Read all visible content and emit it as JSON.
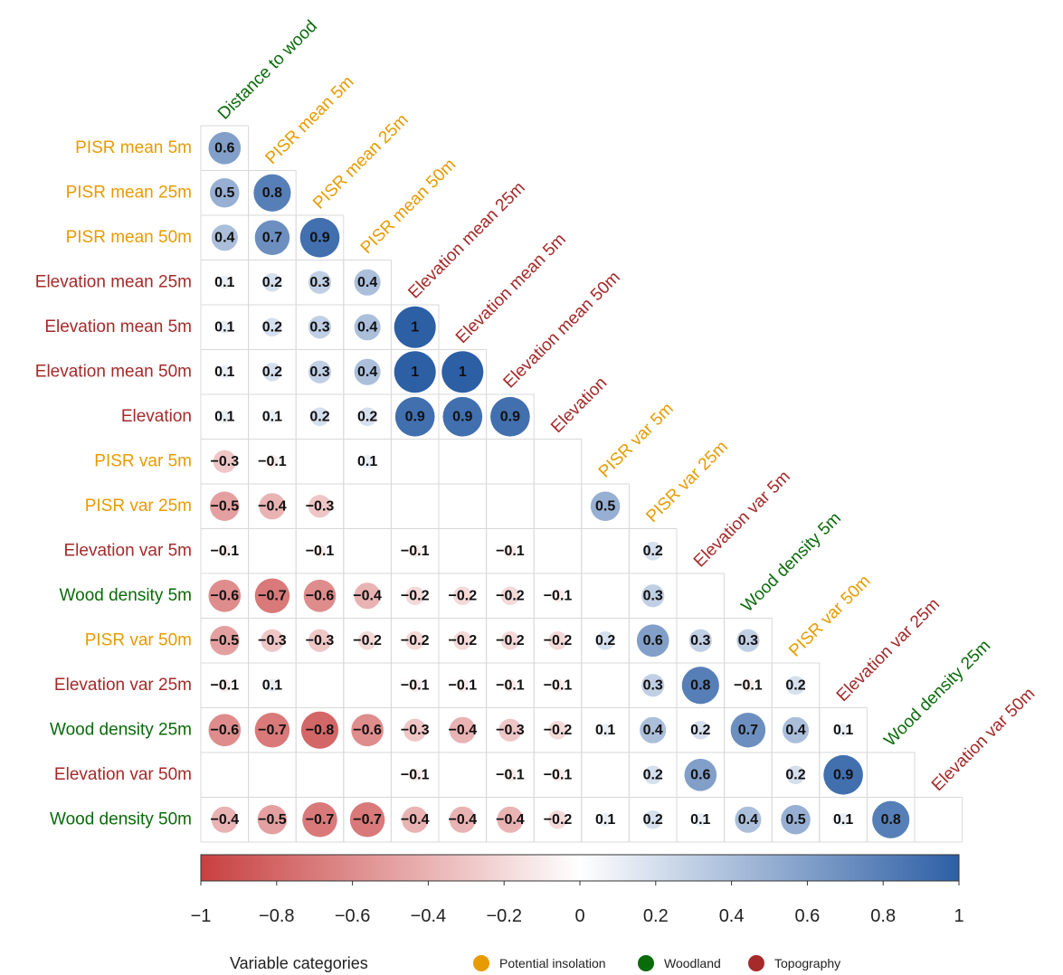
{
  "colors": {
    "Potential insolation": "#e79b00",
    "Woodland": "#0a6b0a",
    "Topography": "#a52a2a",
    "negative": "#cc4444",
    "positive": "#3b6fb0"
  },
  "chart_data": {
    "type": "heatmap",
    "diagonal_labels": [
      {
        "label": "Distance to wood",
        "category": "Woodland"
      },
      {
        "label": "PISR mean 5m",
        "category": "Potential insolation"
      },
      {
        "label": "PISR mean 25m",
        "category": "Potential insolation"
      },
      {
        "label": "PISR mean 50m",
        "category": "Potential insolation"
      },
      {
        "label": "Elevation mean 25m",
        "category": "Topography"
      },
      {
        "label": "Elevation mean 5m",
        "category": "Topography"
      },
      {
        "label": "Elevation mean 50m",
        "category": "Topography"
      },
      {
        "label": "Elevation",
        "category": "Topography"
      },
      {
        "label": "PISR var 5m",
        "category": "Potential insolation"
      },
      {
        "label": "PISR var 25m",
        "category": "Potential insolation"
      },
      {
        "label": "Elevation var 5m",
        "category": "Topography"
      },
      {
        "label": "Wood density 5m",
        "category": "Woodland"
      },
      {
        "label": "PISR var 50m",
        "category": "Potential insolation"
      },
      {
        "label": "Elevation var 25m",
        "category": "Topography"
      },
      {
        "label": "Wood density 25m",
        "category": "Woodland"
      },
      {
        "label": "Elevation var 50m",
        "category": "Topography"
      }
    ],
    "rows": [
      {
        "label": "PISR mean 5m",
        "category": "Potential insolation",
        "values": [
          0.6
        ]
      },
      {
        "label": "PISR mean 25m",
        "category": "Potential insolation",
        "values": [
          0.5,
          0.8
        ]
      },
      {
        "label": "PISR mean 50m",
        "category": "Potential insolation",
        "values": [
          0.4,
          0.7,
          0.9
        ]
      },
      {
        "label": "Elevation mean 25m",
        "category": "Topography",
        "values": [
          0.1,
          0.2,
          0.3,
          0.4
        ]
      },
      {
        "label": "Elevation mean 5m",
        "category": "Topography",
        "values": [
          0.1,
          0.2,
          0.3,
          0.4,
          1
        ]
      },
      {
        "label": "Elevation mean 50m",
        "category": "Topography",
        "values": [
          0.1,
          0.2,
          0.3,
          0.4,
          1,
          1
        ]
      },
      {
        "label": "Elevation",
        "category": "Topography",
        "values": [
          0.1,
          0.1,
          0.2,
          0.2,
          0.9,
          0.9,
          0.9
        ]
      },
      {
        "label": "PISR var 5m",
        "category": "Potential insolation",
        "values": [
          -0.3,
          -0.1,
          null,
          0.1,
          null,
          null,
          null,
          null
        ]
      },
      {
        "label": "PISR var 25m",
        "category": "Potential insolation",
        "values": [
          -0.5,
          -0.4,
          -0.3,
          null,
          null,
          null,
          null,
          null,
          0.5
        ]
      },
      {
        "label": "Elevation var 5m",
        "category": "Topography",
        "values": [
          -0.1,
          null,
          -0.1,
          null,
          -0.1,
          null,
          -0.1,
          null,
          null,
          0.2
        ]
      },
      {
        "label": "Wood density 5m",
        "category": "Woodland",
        "values": [
          -0.6,
          -0.7,
          -0.6,
          -0.4,
          -0.2,
          -0.2,
          -0.2,
          -0.1,
          null,
          0.3,
          null
        ]
      },
      {
        "label": "PISR var 50m",
        "category": "Potential insolation",
        "values": [
          -0.5,
          -0.3,
          -0.3,
          -0.2,
          -0.2,
          -0.2,
          -0.2,
          -0.2,
          0.2,
          0.6,
          0.3,
          0.3
        ]
      },
      {
        "label": "Elevation var 25m",
        "category": "Topography",
        "values": [
          -0.1,
          0.1,
          null,
          null,
          -0.1,
          -0.1,
          -0.1,
          -0.1,
          null,
          0.3,
          0.8,
          -0.1,
          0.2
        ]
      },
      {
        "label": "Wood density 25m",
        "category": "Woodland",
        "values": [
          -0.6,
          -0.7,
          -0.8,
          -0.6,
          -0.3,
          -0.4,
          -0.3,
          -0.2,
          0.1,
          0.4,
          0.2,
          0.7,
          0.4,
          0.1
        ]
      },
      {
        "label": "Elevation var 50m",
        "category": "Topography",
        "values": [
          null,
          null,
          null,
          null,
          -0.1,
          null,
          -0.1,
          -0.1,
          null,
          0.2,
          0.6,
          null,
          0.2,
          0.9,
          null
        ]
      },
      {
        "label": "Wood density 50m",
        "category": "Woodland",
        "values": [
          -0.4,
          -0.5,
          -0.7,
          -0.7,
          -0.4,
          -0.4,
          -0.4,
          -0.2,
          0.1,
          0.2,
          0.1,
          0.4,
          0.5,
          0.1,
          0.8,
          null
        ]
      }
    ],
    "colorbar": {
      "range": [
        -1,
        1
      ],
      "ticks": [
        "−1",
        "−0.8",
        "−0.6",
        "−0.4",
        "−0.2",
        "0",
        "0.2",
        "0.4",
        "0.6",
        "0.8",
        "1"
      ]
    },
    "legend": {
      "title": "Variable categories",
      "items": [
        "Potential insolation",
        "Woodland",
        "Topography"
      ],
      "position": "bottom"
    }
  }
}
